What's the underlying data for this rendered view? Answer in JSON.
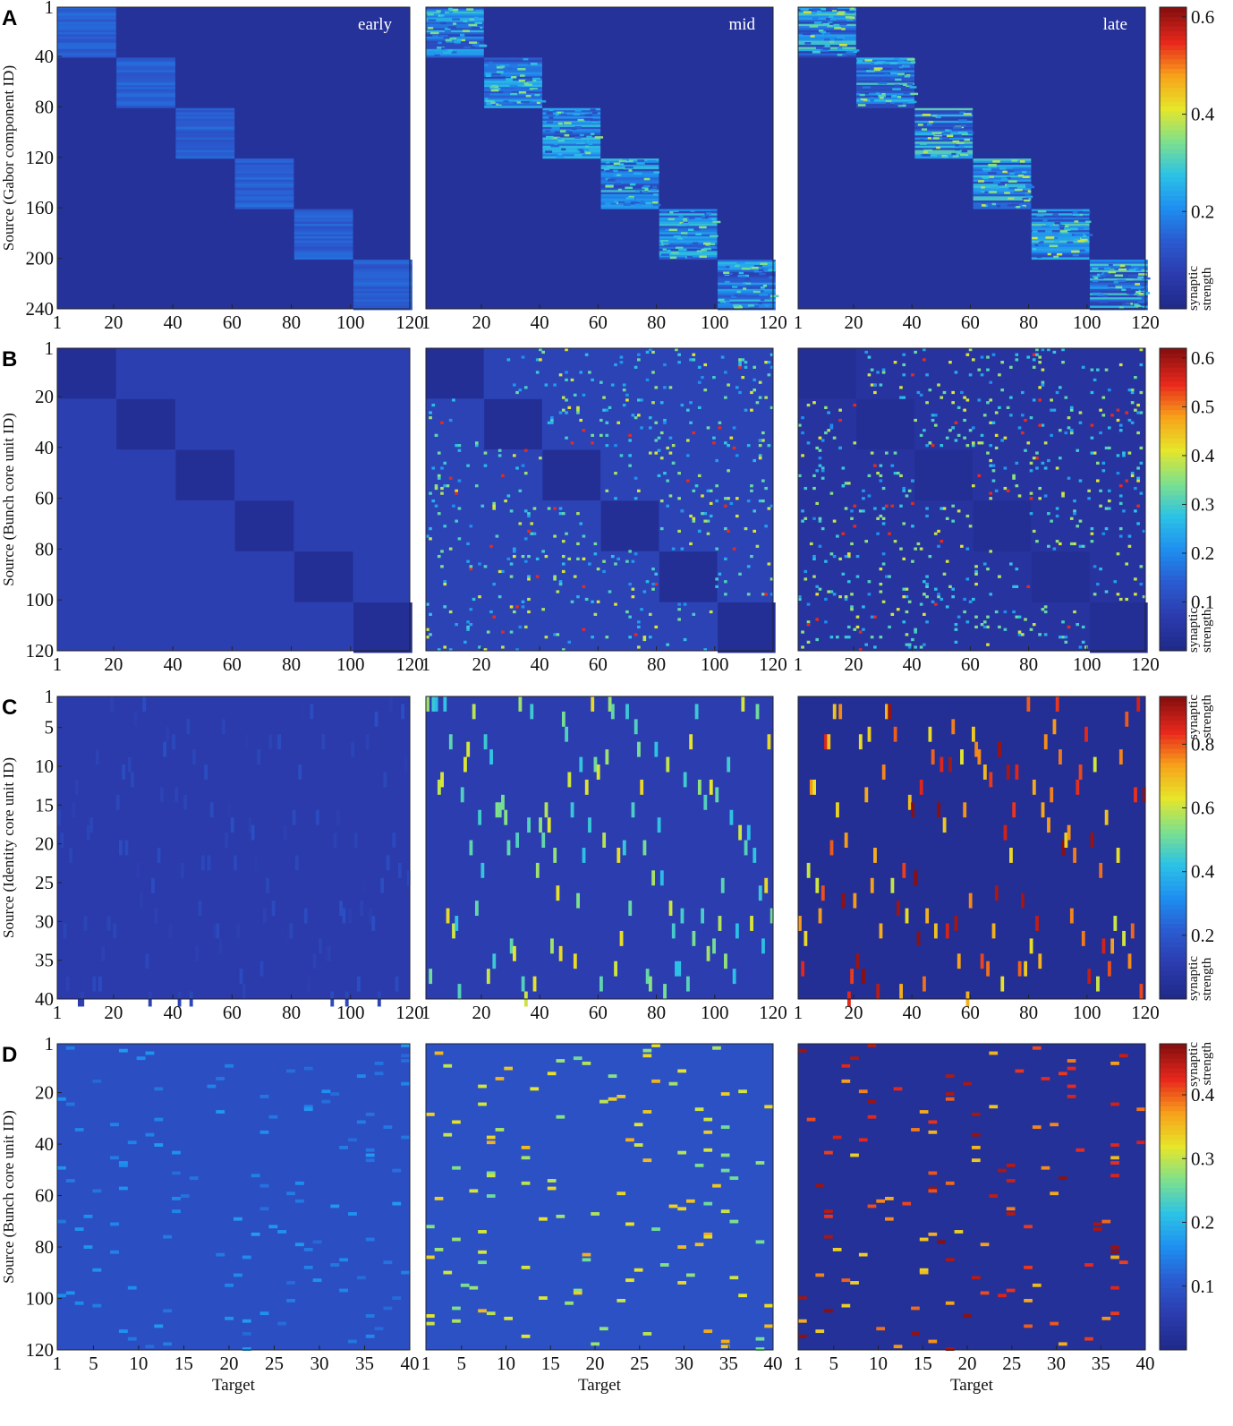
{
  "colors": {
    "background_low": "#252f91",
    "colormap": [
      "#1f2a8a",
      "#2c3cae",
      "#2a5bd0",
      "#1e8ff0",
      "#2cc2e6",
      "#7ee08c",
      "#e6e62a",
      "#f7a11a",
      "#e8281c",
      "#8a1010"
    ]
  },
  "chart_data": [
    {
      "type": "heatmap",
      "panel_label": "A",
      "ylabel": "Source (Gabor component ID)",
      "xlabel": "",
      "x_range": [
        1,
        120
      ],
      "y_range": [
        1,
        240
      ],
      "xticks": [
        "1",
        "20",
        "40",
        "60",
        "80",
        "100",
        "120"
      ],
      "yticks": [
        "1",
        "40",
        "80",
        "120",
        "160",
        "200",
        "240"
      ],
      "colorbar": {
        "ticks": [
          0.2,
          0.4,
          0.6
        ],
        "tick_labels": [
          "0.2",
          "0.4",
          "0.6"
        ],
        "range": [
          0.0,
          0.62
        ],
        "label": "synaptic strength",
        "label_position": "bottom"
      },
      "panels": [
        {
          "name": "early",
          "label": "early",
          "background": 0.03,
          "block_mean": 0.14,
          "block_spread": 0.03
        },
        {
          "name": "mid",
          "label": "mid",
          "background": 0.03,
          "block_mean": 0.18,
          "block_spread": 0.12
        },
        {
          "name": "late",
          "label": "late",
          "background": 0.03,
          "block_mean": 0.19,
          "block_spread": 0.14
        }
      ]
    },
    {
      "type": "heatmap",
      "panel_label": "B",
      "ylabel": "Source (Bunch core unit ID)",
      "xlabel": "",
      "x_range": [
        1,
        120
      ],
      "y_range": [
        1,
        120
      ],
      "xticks": [
        "1",
        "20",
        "40",
        "60",
        "80",
        "100",
        "120"
      ],
      "yticks": [
        "1",
        "20",
        "40",
        "60",
        "80",
        "100",
        "120"
      ],
      "colorbar": {
        "ticks": [
          0.1,
          0.2,
          0.3,
          0.4,
          0.5,
          0.6
        ],
        "tick_labels": [
          "0.1",
          "0.2",
          "0.3",
          "0.4",
          "0.5",
          "0.6"
        ],
        "range": [
          0.0,
          0.62
        ],
        "label": "synaptic strength",
        "label_position": "bottom"
      },
      "panels": [
        {
          "name": "early",
          "background": 0.075,
          "diag_block": 0.02,
          "dots": 0.0
        },
        {
          "name": "mid",
          "background": 0.085,
          "diag_block": 0.02,
          "dots": 0.04
        },
        {
          "name": "late",
          "background": 0.04,
          "diag_block": 0.02,
          "dots": 0.05
        }
      ]
    },
    {
      "type": "heatmap",
      "panel_label": "C",
      "ylabel": "Source (Identity core unit ID)",
      "xlabel": "",
      "x_range": [
        1,
        120
      ],
      "y_range": [
        1,
        40
      ],
      "xticks": [
        "1",
        "20",
        "40",
        "60",
        "80",
        "100",
        "120"
      ],
      "yticks": [
        "1",
        "5",
        "10",
        "15",
        "20",
        "25",
        "30",
        "35",
        "40"
      ],
      "colorbar": {
        "ticks": [
          0.2,
          0.4,
          0.6,
          0.8
        ],
        "tick_labels": [
          "0.2",
          "0.4",
          "0.6",
          "0.8"
        ],
        "range": [
          0.0,
          0.95
        ],
        "label": "synaptic strength",
        "label_position": "both"
      },
      "panels": [
        {
          "name": "early",
          "background": 0.1,
          "dash_value": 0.14
        },
        {
          "name": "mid",
          "background": 0.11,
          "dash_value": 0.55
        },
        {
          "name": "late",
          "background": 0.03,
          "dash_value": 0.8
        }
      ]
    },
    {
      "type": "heatmap",
      "panel_label": "D",
      "ylabel": "Source (Bunch core unit ID)",
      "xlabel": "Target",
      "x_range": [
        1,
        40
      ],
      "y_range": [
        1,
        120
      ],
      "xticks": [
        "1",
        "5",
        "10",
        "15",
        "20",
        "25",
        "30",
        "35",
        "40"
      ],
      "yticks": [
        "1",
        "20",
        "40",
        "60",
        "80",
        "100",
        "120"
      ],
      "colorbar": {
        "ticks": [
          0.1,
          0.2,
          0.3,
          0.4
        ],
        "tick_labels": [
          "0.1",
          "0.2",
          "0.3",
          "0.4"
        ],
        "range": [
          0.0,
          0.48
        ],
        "label": "synaptic strength",
        "label_position": "top"
      },
      "panels": [
        {
          "name": "early",
          "background": 0.085,
          "dash_value": 0.15
        },
        {
          "name": "mid",
          "background": 0.09,
          "dash_value": 0.32
        },
        {
          "name": "late",
          "background": 0.02,
          "dash_value": 0.42
        }
      ]
    }
  ]
}
